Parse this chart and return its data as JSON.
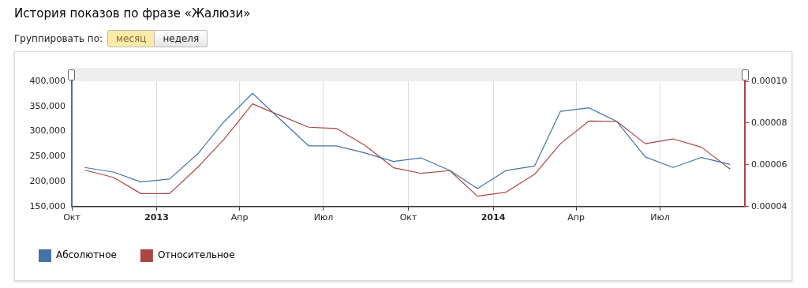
{
  "chart_data": {
    "type": "line",
    "title": "История показов по фразе «Жалюзи»",
    "annotations": [
      "Группировать по:",
      "месяц",
      "неделя"
    ],
    "x": [
      "2012-10-15",
      "2012-11-15",
      "2012-12-15",
      "2013-01-15",
      "2013-02-15",
      "2013-03-15",
      "2013-04-15",
      "2013-05-15",
      "2013-06-15",
      "2013-07-15",
      "2013-08-15",
      "2013-09-15",
      "2013-10-15",
      "2013-11-15",
      "2013-12-15",
      "2014-01-15",
      "2014-02-15",
      "2014-03-15",
      "2014-04-15",
      "2014-05-15",
      "2014-06-15",
      "2014-07-15",
      "2014-08-15",
      "2014-09-15"
    ],
    "series": [
      {
        "name": "Абсолютное",
        "color": "#4572a7",
        "values": [
          228000,
          219000,
          199000,
          205000,
          256000,
          319000,
          376000,
          324000,
          271000,
          271000,
          257000,
          240000,
          247000,
          222000,
          186000,
          222000,
          231000,
          340000,
          347000,
          320000,
          249000,
          228000,
          248000,
          234000
        ]
      },
      {
        "name": "Относительное",
        "color": "#aa4643",
        "axis": "y2",
        "values": [
          5.75e-05,
          5.4e-05,
          4.62e-05,
          4.62e-05,
          5.9e-05,
          7.22e-05,
          8.92e-05,
          8.36e-05,
          7.8e-05,
          7.74e-05,
          6.93e-05,
          5.86e-05,
          5.59e-05,
          5.72e-05,
          4.5e-05,
          4.69e-05,
          5.55e-05,
          7.01e-05,
          8.1e-05,
          8.08e-05,
          7.01e-05,
          7.24e-05,
          6.84e-05,
          5.8e-05
        ]
      }
    ],
    "xlim": [
      "2012-10-01",
      "2014-10-01"
    ],
    "xticks": [
      {
        "value": "2012-10-01",
        "label": "Окт"
      },
      {
        "value": "2013-01-01",
        "label": "2013"
      },
      {
        "value": "2013-04-01",
        "label": "Апр"
      },
      {
        "value": "2013-07-01",
        "label": "Июл"
      },
      {
        "value": "2013-10-01",
        "label": "Окт"
      },
      {
        "value": "2014-01-01",
        "label": "2014"
      },
      {
        "value": "2014-04-01",
        "label": "Апр"
      },
      {
        "value": "2014-07-01",
        "label": "Июл"
      }
    ],
    "ylim": [
      150000,
      400000
    ],
    "yticks": [
      {
        "value": 150000,
        "label": "150,000"
      },
      {
        "value": 200000,
        "label": "200,000"
      },
      {
        "value": 250000,
        "label": "250,000"
      },
      {
        "value": 300000,
        "label": "300,000"
      },
      {
        "value": 350000,
        "label": "350,000"
      },
      {
        "value": 400000,
        "label": "400,000"
      }
    ],
    "y2lim": [
      4e-05,
      0.0001
    ],
    "y2ticks": [
      {
        "value": 4e-05,
        "label": "0.00004"
      },
      {
        "value": 6e-05,
        "label": "0.00006"
      },
      {
        "value": 8e-05,
        "label": "0.00008"
      },
      {
        "value": 0.0001,
        "label": "0.00010"
      }
    ],
    "grid": "x",
    "legend": "bottom left",
    "marker": "none",
    "line_style": "solid"
  }
}
